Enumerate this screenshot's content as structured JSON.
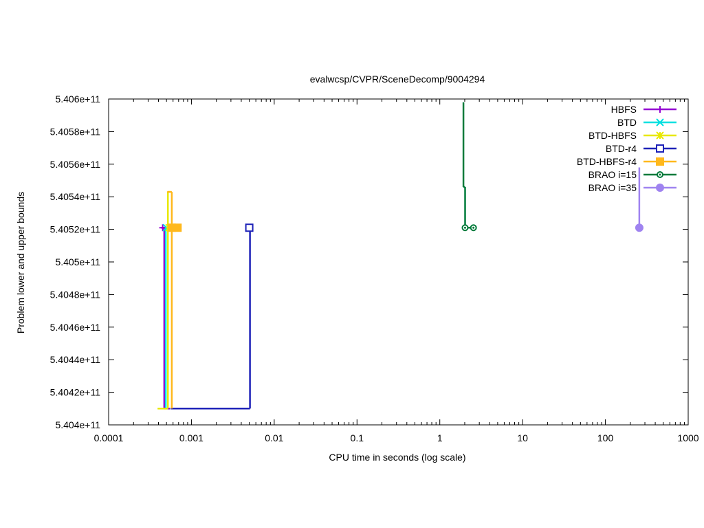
{
  "chart_data": {
    "type": "line",
    "title": "evalwcsp/CVPR/SceneDecomp/9004294",
    "xlabel": "CPU time in seconds (log scale)",
    "ylabel": "Problem lower and upper bounds",
    "xscale": "log",
    "xlim": [
      0.0001,
      1000
    ],
    "ylim": [
      540400000000,
      540600000000
    ],
    "x_ticks": [
      0.0001,
      0.001,
      0.01,
      0.1,
      1,
      10,
      100,
      1000
    ],
    "x_tick_labels": [
      "0.0001",
      "0.001",
      "0.01",
      "0.1",
      "1",
      "10",
      "100",
      "1000"
    ],
    "y_ticks": [
      540400000000,
      540420000000,
      540440000000,
      540460000000,
      540480000000,
      540500000000,
      540520000000,
      540540000000,
      540560000000,
      540580000000,
      540600000000
    ],
    "y_tick_labels": [
      "5.404e+11",
      "5.4042e+11",
      "5.4044e+11",
      "5.4046e+11",
      "5.4048e+11",
      "5.405e+11",
      "5.4052e+11",
      "5.4054e+11",
      "5.4056e+11",
      "5.4058e+11",
      "5.406e+11"
    ],
    "grid": false,
    "legend_position": "top-right",
    "series": [
      {
        "name": "HBFS",
        "color": "#9400d3",
        "marker": "plus",
        "lines": [
          [
            [
              0.00043,
              540521000000
            ],
            [
              0.00048,
              540521000000
            ]
          ],
          [
            [
              0.00047,
              540410000000
            ],
            [
              0.00047,
              540521000000
            ]
          ],
          [
            [
              0.00047,
              540410000000
            ],
            [
              0.00055,
              540410000000
            ]
          ]
        ],
        "markers": [
          [
            0.00045,
            540521000000
          ]
        ]
      },
      {
        "name": "BTD",
        "color": "#00e0e0",
        "marker": "cross",
        "lines": [
          [
            [
              0.00049,
              540410000000
            ],
            [
              0.00049,
              540521000000
            ]
          ],
          [
            [
              0.00049,
              540521000000
            ],
            [
              0.00053,
              540521000000
            ]
          ]
        ],
        "markers": [
          [
            0.0005,
            540521000000
          ]
        ]
      },
      {
        "name": "BTD-HBFS",
        "color": "#e8e800",
        "marker": "star",
        "lines": [
          [
            [
              0.00039,
              540410000000
            ],
            [
              0.00052,
              540410000000
            ]
          ],
          [
            [
              0.00052,
              540410000000
            ],
            [
              0.00052,
              540543000000
            ]
          ],
          [
            [
              0.00052,
              540543000000
            ],
            [
              0.00056,
              540543000000
            ]
          ]
        ],
        "markers": [
          [
            0.00054,
            540521000000
          ]
        ]
      },
      {
        "name": "BTD-r4",
        "color": "#1e22b8",
        "marker": "open-square",
        "lines": [
          [
            [
              0.00056,
              540410000000
            ],
            [
              0.0051,
              540410000000
            ]
          ],
          [
            [
              0.0051,
              540410000000
            ],
            [
              0.0051,
              540521000000
            ]
          ]
        ],
        "markers": [
          [
            0.005,
            540521000000
          ]
        ]
      },
      {
        "name": "BTD-HBFS-r4",
        "color": "#ffb81c",
        "marker": "filled-square",
        "lines": [
          [
            [
              0.00058,
              540410000000
            ],
            [
              0.00058,
              540543000000
            ]
          ],
          [
            [
              0.00051,
              540543000000
            ],
            [
              0.00058,
              540543000000
            ]
          ],
          [
            [
              0.00054,
              540521000000
            ],
            [
              0.00072,
              540521000000
            ]
          ]
        ],
        "markers": [
          [
            0.00058,
            540521000000
          ],
          [
            0.00068,
            540521000000
          ]
        ]
      },
      {
        "name": "BRAO i=15",
        "color": "#007a3a",
        "marker": "open-circle",
        "lines": [
          [
            [
              1.93,
              540598000000
            ],
            [
              1.93,
              540546000000
            ]
          ],
          [
            [
              1.93,
              540546000000
            ],
            [
              2.02,
              540546000000
            ]
          ],
          [
            [
              2.02,
              540546000000
            ],
            [
              2.02,
              540521000000
            ]
          ],
          [
            [
              2.02,
              540521000000
            ],
            [
              2.55,
              540521000000
            ]
          ]
        ],
        "markers": [
          [
            2.02,
            540521000000
          ],
          [
            2.55,
            540521000000
          ]
        ]
      },
      {
        "name": "BRAO i=35",
        "color": "#9f83f0",
        "marker": "filled-circle",
        "lines": [
          [
            [
              257,
              540558000000
            ],
            [
              257,
              540521000000
            ]
          ]
        ],
        "markers": [
          [
            257,
            540521000000
          ]
        ]
      }
    ]
  }
}
